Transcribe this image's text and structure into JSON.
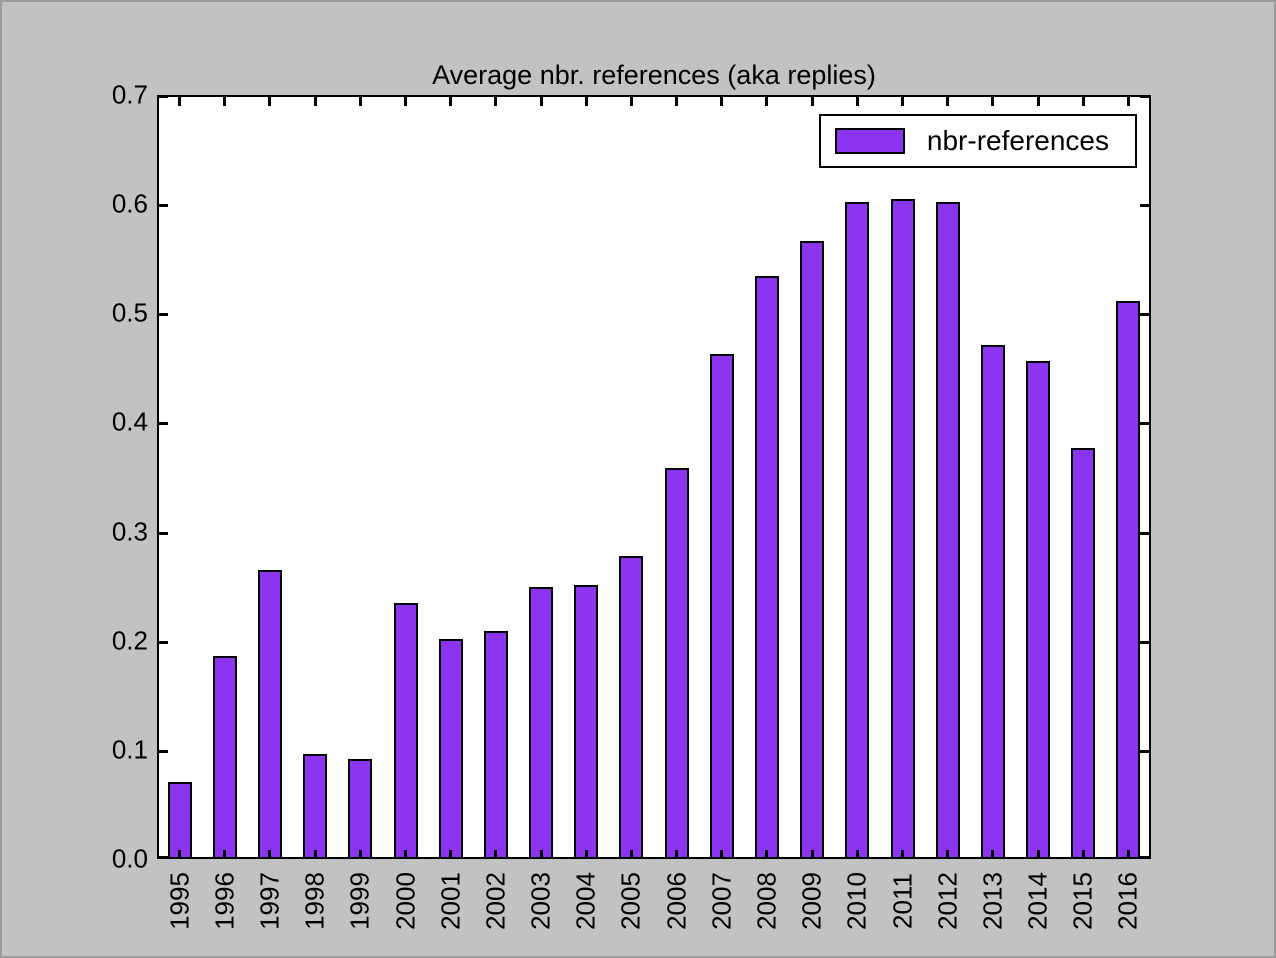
{
  "figure": {
    "background_color": "#c2c2c2",
    "outer_border_color": "#9b9b9b"
  },
  "chart_data": {
    "type": "bar",
    "title": "Average nbr. references (aka replies)",
    "xlabel": "",
    "ylabel": "",
    "grid": false,
    "categories": [
      "1995",
      "1996",
      "1997",
      "1998",
      "1999",
      "2000",
      "2001",
      "2002",
      "2003",
      "2004",
      "2005",
      "2006",
      "2007",
      "2008",
      "2009",
      "2010",
      "2011",
      "2012",
      "2013",
      "2014",
      "2015",
      "2016"
    ],
    "values": [
      0.071,
      0.186,
      0.265,
      0.096,
      0.092,
      0.235,
      0.202,
      0.209,
      0.249,
      0.251,
      0.278,
      0.358,
      0.463,
      0.534,
      0.566,
      0.602,
      0.605,
      0.602,
      0.471,
      0.456,
      0.377,
      0.511
    ],
    "ylim": [
      0.0,
      0.7
    ],
    "yticks": [
      0.0,
      0.1,
      0.2,
      0.3,
      0.4,
      0.5,
      0.6,
      0.7
    ],
    "ytick_labels": [
      "0.0",
      "0.1",
      "0.2",
      "0.3",
      "0.4",
      "0.5",
      "0.6",
      "0.7"
    ],
    "bar_color": "#8c35f0",
    "bar_edge_color": "#000000",
    "axes_background": "#ffffff",
    "legend": {
      "position": "upper right",
      "entries": [
        {
          "label": "nbr-references",
          "color": "#8c35f0"
        }
      ]
    }
  }
}
